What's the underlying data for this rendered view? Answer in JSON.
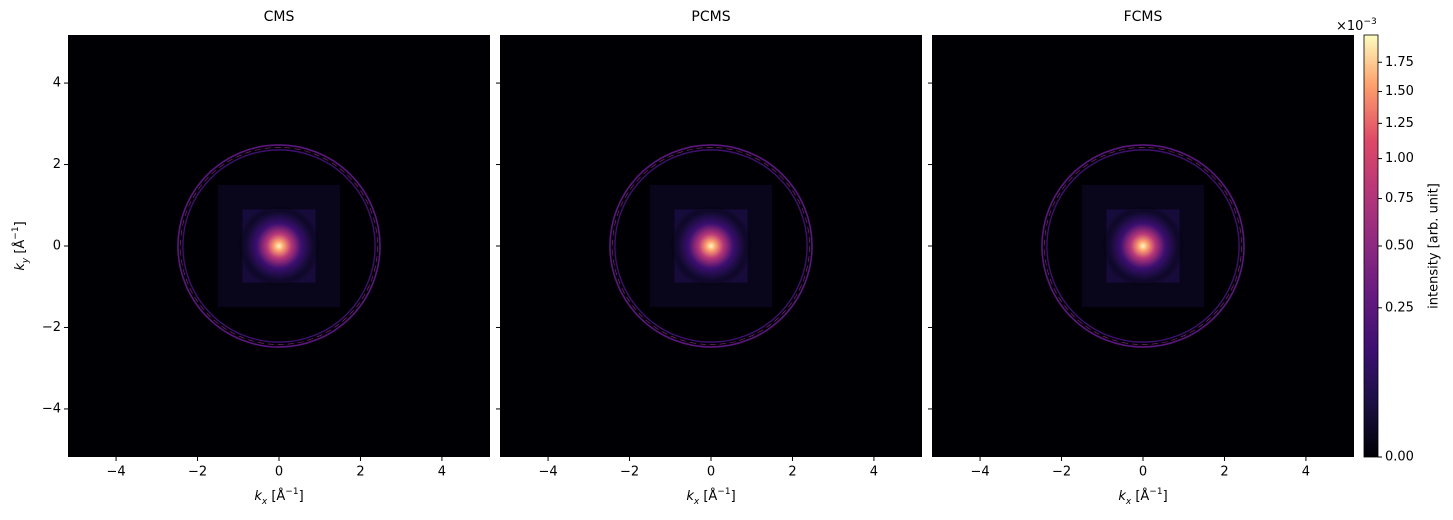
{
  "chart_data": [
    {
      "type": "heatmap",
      "title": "CMS",
      "xlabel": "$k_x$ [Å$^{−1}$]",
      "ylabel": "$k_y$ [Å$^{−1}$]",
      "xlim": [
        -5.18,
        5.18
      ],
      "ylim": [
        -5.18,
        5.18
      ],
      "xticks": [
        {
          "value": -4,
          "label": "−4"
        },
        {
          "value": -2,
          "label": "−2"
        },
        0,
        2,
        4
      ],
      "yticks": [
        {
          "value": -4,
          "label": "−4"
        },
        {
          "value": -2,
          "label": "−2"
        },
        0,
        2,
        4
      ],
      "ytick_labels": true,
      "colormap": "magma"
    },
    {
      "type": "heatmap",
      "title": "PCMS",
      "xlabel": "$k_x$ [Å$^{−1}$]",
      "xlim": [
        -5.18,
        5.18
      ],
      "ylim": [
        -5.18,
        5.18
      ],
      "xticks": [
        {
          "value": -4,
          "label": "−4"
        },
        {
          "value": -2,
          "label": "−2"
        },
        0,
        2,
        4
      ],
      "yticks": [
        -4,
        -2,
        0,
        2,
        4
      ],
      "ytick_labels": false,
      "colormap": "magma"
    },
    {
      "type": "heatmap",
      "title": "FCMS",
      "xlabel": "$k_x$ [Å$^{−1}$]",
      "xlim": [
        -5.18,
        5.18
      ],
      "ylim": [
        -5.18,
        5.18
      ],
      "xticks": [
        {
          "value": -4,
          "label": "−4"
        },
        {
          "value": -2,
          "label": "−2"
        },
        0,
        2,
        4
      ],
      "yticks": [
        -4,
        -2,
        0,
        2,
        4
      ],
      "ytick_labels": false,
      "colormap": "magma"
    },
    {
      "type": "colorbar",
      "label": "intensity [arb. unit]",
      "offset_text": "×10$^{−3}$",
      "clim": [
        0,
        2
      ],
      "scale": "power",
      "gamma": 0.5,
      "colormap": "magma",
      "ticks": [
        {
          "value": 0,
          "label": "0.00"
        },
        0.25,
        {
          "value": 0.5,
          "label": "0.50"
        },
        0.75,
        {
          "value": 1,
          "label": "1.00"
        },
        1.25,
        {
          "value": 1.5,
          "label": "1.50"
        },
        1.75
      ]
    }
  ]
}
